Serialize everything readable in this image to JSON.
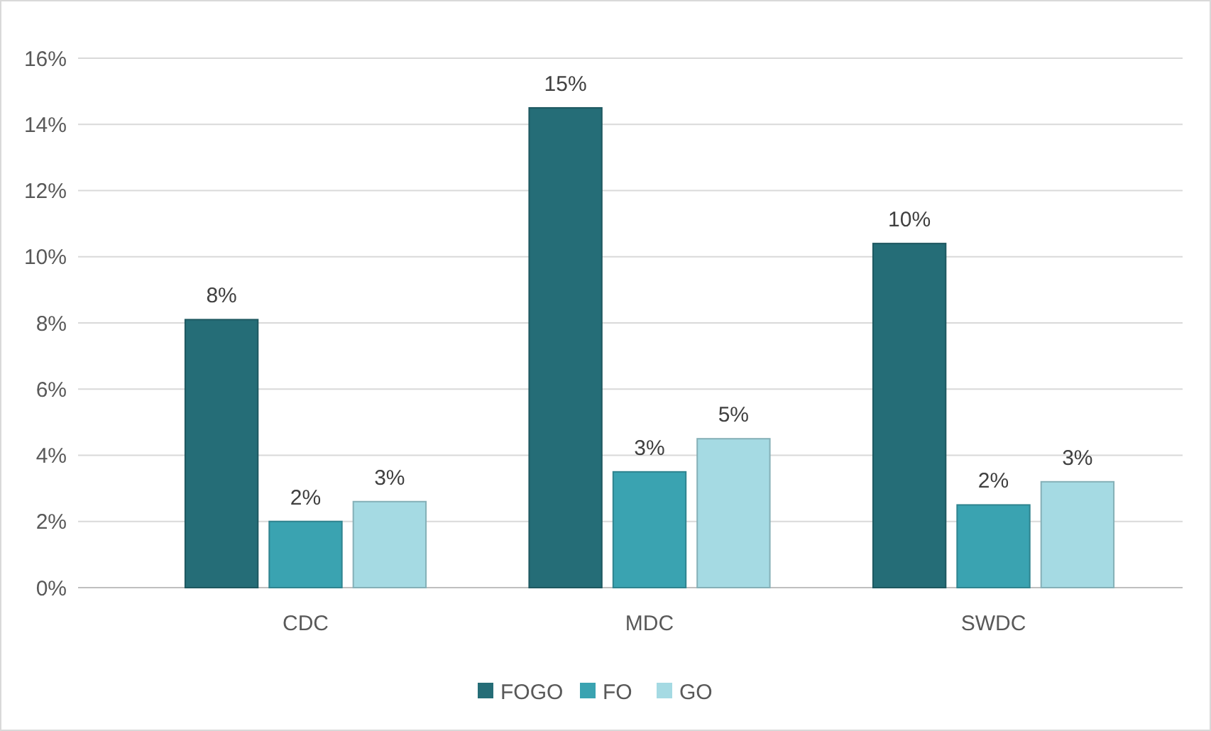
{
  "chart_data": {
    "type": "bar",
    "categories": [
      "CDC",
      "MDC",
      "SWDC"
    ],
    "series": [
      {
        "name": "FOGO",
        "color": "#256d77",
        "values": [
          8.1,
          14.5,
          10.4
        ],
        "value_labels": [
          "8%",
          "15%",
          "10%"
        ]
      },
      {
        "name": "FO",
        "color": "#3aa3b1",
        "values": [
          2.0,
          3.5,
          2.5
        ],
        "value_labels": [
          "2%",
          "3%",
          "2%"
        ]
      },
      {
        "name": "GO",
        "color": "#a5dae3",
        "values": [
          2.6,
          4.5,
          3.2
        ],
        "value_labels": [
          "3%",
          "5%",
          "3%"
        ]
      }
    ],
    "ylim": [
      0,
      16
    ],
    "yticks": [
      {
        "value": 0,
        "label": "0%"
      },
      {
        "value": 2,
        "label": "2%"
      },
      {
        "value": 4,
        "label": "4%"
      },
      {
        "value": 6,
        "label": "6%"
      },
      {
        "value": 8,
        "label": "8%"
      },
      {
        "value": 10,
        "label": "10%"
      },
      {
        "value": 12,
        "label": "12%"
      },
      {
        "value": 14,
        "label": "14%"
      },
      {
        "value": 16,
        "label": "16%"
      }
    ],
    "grid": "y",
    "legend": "bottom"
  }
}
